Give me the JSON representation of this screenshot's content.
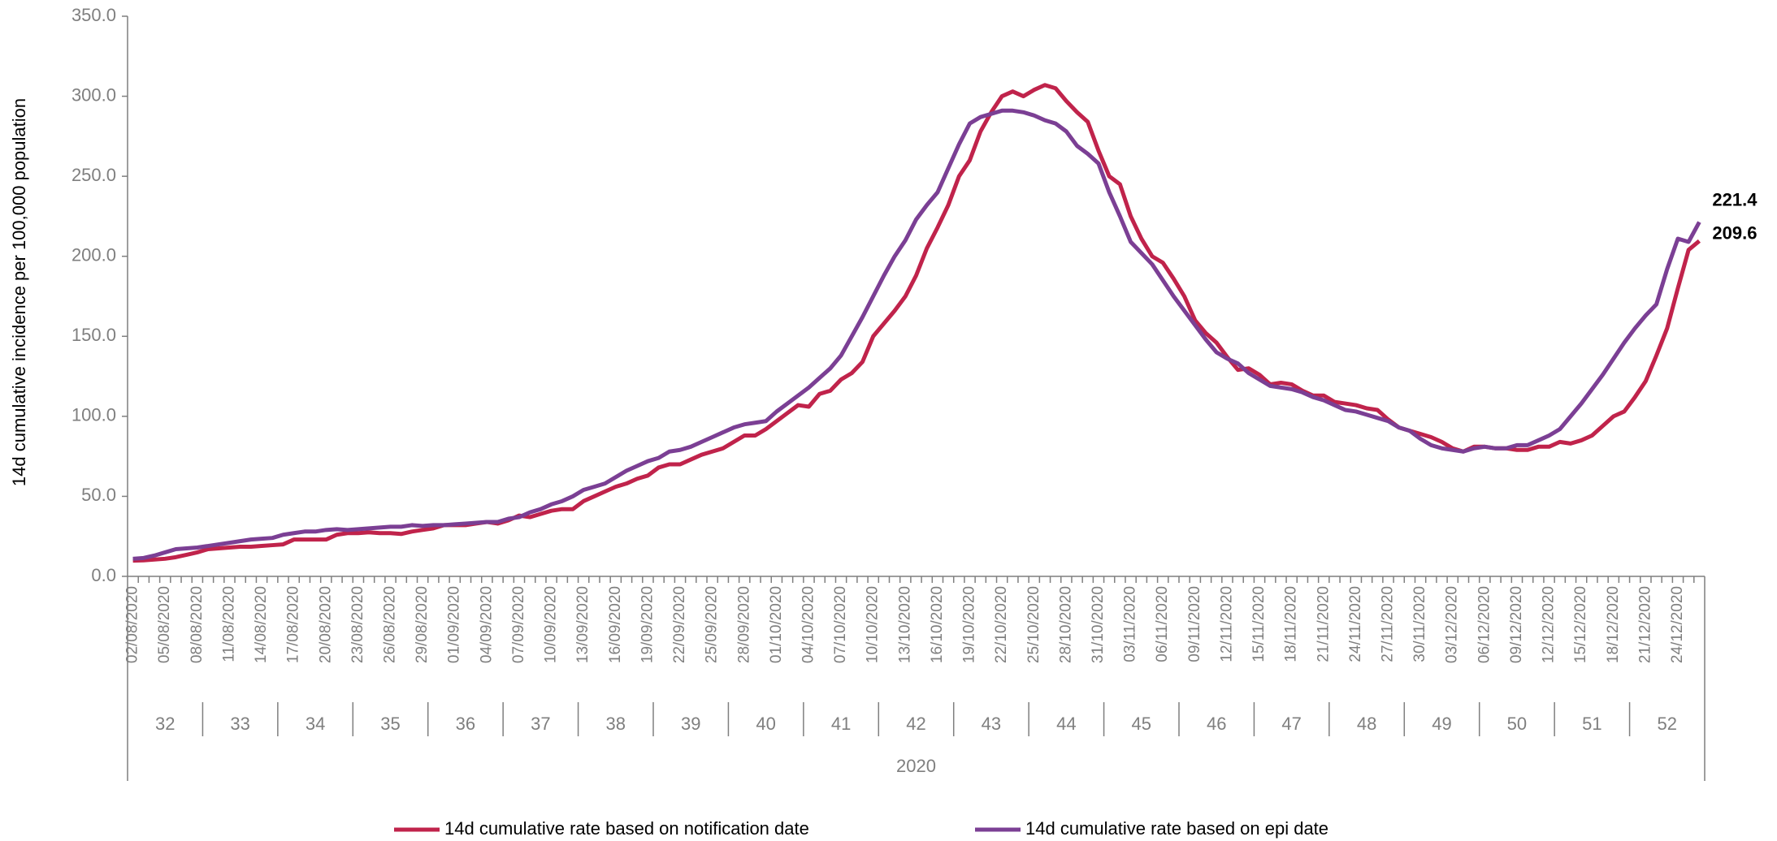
{
  "chart_data": {
    "type": "line",
    "y_label": "14d cumulative incidence per 100,000 population",
    "ylim": [
      0,
      350
    ],
    "yticks": [
      {
        "value": 0,
        "label": "0.0"
      },
      {
        "value": 50,
        "label": "50.0"
      },
      {
        "value": 100,
        "label": "100.0"
      },
      {
        "value": 150,
        "label": "150.0"
      },
      {
        "value": 200,
        "label": "200.0"
      },
      {
        "value": 250,
        "label": "250.0"
      },
      {
        "value": 300,
        "label": "300.0"
      },
      {
        "value": 350,
        "label": "350.0"
      }
    ],
    "categories": [
      "02/08/2020",
      null,
      null,
      "05/08/2020",
      null,
      null,
      "08/08/2020",
      null,
      null,
      "11/08/2020",
      null,
      null,
      "14/08/2020",
      null,
      null,
      "17/08/2020",
      null,
      null,
      "20/08/2020",
      null,
      null,
      "23/08/2020",
      null,
      null,
      "26/08/2020",
      null,
      null,
      "29/08/2020",
      null,
      null,
      "01/09/2020",
      null,
      null,
      "04/09/2020",
      null,
      null,
      "07/09/2020",
      null,
      null,
      "10/09/2020",
      null,
      null,
      "13/09/2020",
      null,
      null,
      "16/09/2020",
      null,
      null,
      "19/09/2020",
      null,
      null,
      "22/09/2020",
      null,
      null,
      "25/09/2020",
      null,
      null,
      "28/09/2020",
      null,
      null,
      "01/10/2020",
      null,
      null,
      "04/10/2020",
      null,
      null,
      "07/10/2020",
      null,
      null,
      "10/10/2020",
      null,
      null,
      "13/10/2020",
      null,
      null,
      "16/10/2020",
      null,
      null,
      "19/10/2020",
      null,
      null,
      "22/10/2020",
      null,
      null,
      "25/10/2020",
      null,
      null,
      "28/10/2020",
      null,
      null,
      "31/10/2020",
      null,
      null,
      "03/11/2020",
      null,
      null,
      "06/11/2020",
      null,
      null,
      "09/11/2020",
      null,
      null,
      "12/11/2020",
      null,
      null,
      "15/11/2020",
      null,
      null,
      "18/11/2020",
      null,
      null,
      "21/11/2020",
      null,
      null,
      "24/11/2020",
      null,
      null,
      "27/11/2020",
      null,
      null,
      "30/11/2020",
      null,
      null,
      "03/12/2020",
      null,
      null,
      "06/12/2020",
      null,
      null,
      "09/12/2020",
      null,
      null,
      "12/12/2020",
      null,
      null,
      "15/12/2020",
      null,
      null,
      "18/12/2020",
      null,
      null,
      "21/12/2020",
      null,
      null,
      "24/12/2020",
      null,
      null
    ],
    "week_labels": [
      "32",
      "33",
      "34",
      "35",
      "36",
      "37",
      "38",
      "39",
      "40",
      "41",
      "42",
      "43",
      "44",
      "45",
      "46",
      "47",
      "48",
      "49",
      "50",
      "51",
      "52"
    ],
    "year_label": "2020",
    "series": [
      {
        "name": "14d cumulative rate based on notification date",
        "color": "#c0234b",
        "values": [
          9.8,
          10,
          10.5,
          11,
          12,
          13.5,
          15,
          17,
          17.5,
          18,
          18.5,
          18.5,
          19,
          19.5,
          20,
          23,
          23,
          23,
          23,
          26,
          27,
          27,
          27.5,
          27,
          27,
          26.5,
          28,
          29,
          30,
          32,
          32,
          32,
          33,
          34,
          33,
          35,
          38,
          37,
          39,
          41,
          42,
          42,
          47,
          50,
          53,
          56,
          58,
          61,
          63,
          68,
          70,
          70,
          73,
          76,
          78,
          80,
          84,
          88,
          88,
          92,
          97,
          102,
          107,
          106,
          114,
          116,
          123,
          127,
          134,
          150,
          158,
          166,
          175,
          188,
          205,
          218,
          232,
          250,
          260,
          278,
          290,
          300,
          303,
          300,
          304,
          307,
          305,
          297,
          290,
          284,
          266,
          250,
          245,
          225,
          211,
          200,
          196,
          186,
          175,
          160,
          152,
          146,
          137,
          129,
          130,
          126,
          120,
          121,
          120,
          116,
          113,
          113,
          109,
          108,
          107,
          105,
          104,
          98,
          93,
          91,
          89,
          87,
          84,
          80,
          78,
          81,
          81,
          80,
          80,
          79,
          79,
          81,
          81,
          84,
          83,
          85,
          88,
          94,
          100,
          103,
          112,
          122,
          138,
          155,
          180,
          204,
          209.6
        ]
      },
      {
        "name": "14d cumulative rate based on epi date",
        "color": "#7b3f94",
        "values": [
          11,
          11.5,
          13,
          15,
          17,
          17.5,
          18,
          19,
          20,
          21,
          22,
          23,
          23.5,
          24,
          26,
          27,
          28,
          28,
          29,
          29.5,
          29,
          29.5,
          30,
          30.5,
          31,
          31,
          32,
          31.5,
          32,
          32,
          32.5,
          33,
          33.5,
          34,
          34,
          36,
          37,
          40,
          42,
          45,
          47,
          50,
          54,
          56,
          58,
          62,
          66,
          69,
          72,
          74,
          78,
          79,
          81,
          84,
          87,
          90,
          93,
          95,
          96,
          97,
          103,
          108,
          113,
          118,
          124,
          130,
          138,
          150,
          162,
          175,
          188,
          200,
          210,
          223,
          232,
          240,
          255,
          270,
          283,
          287,
          289,
          291,
          291,
          290,
          288,
          285,
          283,
          278,
          269,
          264,
          258,
          240,
          225,
          209,
          202,
          195,
          185,
          175,
          166,
          157,
          148,
          140,
          136,
          133,
          127,
          123,
          119,
          118,
          117,
          115,
          112,
          110,
          107,
          104,
          103,
          101,
          99,
          97,
          93,
          91,
          86,
          82,
          80,
          79,
          78,
          80,
          81,
          80,
          80,
          82,
          82,
          85,
          88,
          92,
          100,
          108,
          117,
          126,
          136,
          146,
          155,
          163,
          170,
          192,
          211,
          209,
          221.4
        ]
      }
    ]
  }
}
